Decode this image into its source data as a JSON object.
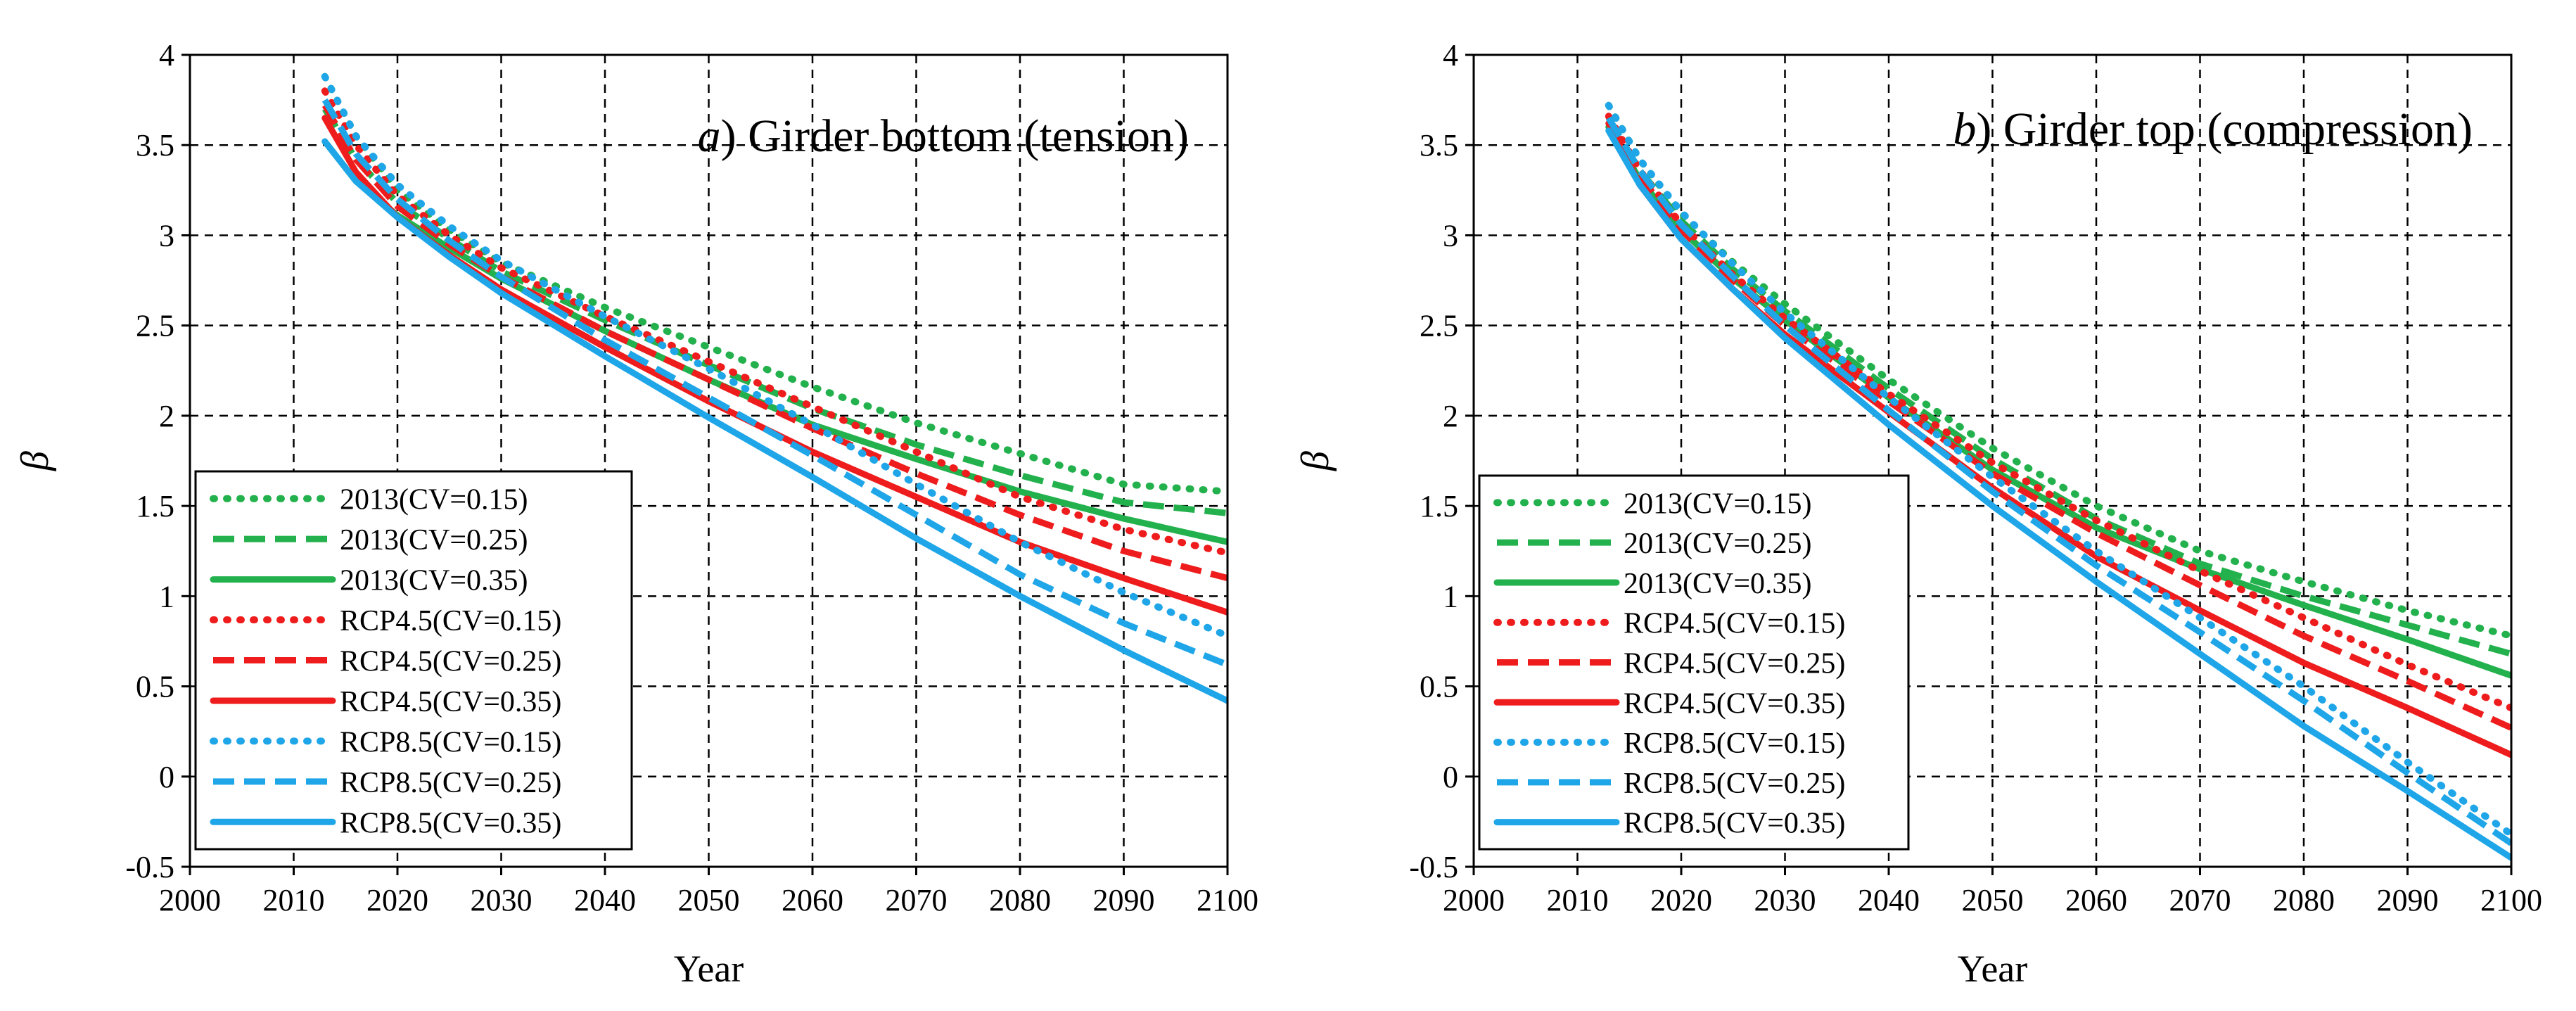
{
  "chart_data": [
    {
      "type": "line",
      "panel_label": "a",
      "title": ") Girder bottom (tension)",
      "xlabel": "Year",
      "ylabel": "β",
      "xlim": [
        2000,
        2100
      ],
      "ylim": [
        -0.5,
        4
      ],
      "xticks": [
        "2000",
        "2010",
        "2020",
        "2030",
        "2040",
        "2050",
        "2060",
        "2070",
        "2080",
        "2090",
        "2100"
      ],
      "yticks": [
        "-0.5",
        "0",
        "0.5",
        "1",
        "1.5",
        "2",
        "2.5",
        "3",
        "3.5",
        "4"
      ],
      "grid": true,
      "legend_position": "bottom-left",
      "series": [
        {
          "name": "2013(CV=0.15)",
          "color": "#22b14c",
          "dash": "dotted",
          "x": [
            2013,
            2016,
            2020,
            2025,
            2030,
            2040,
            2050,
            2060,
            2070,
            2080,
            2090,
            2100
          ],
          "y": [
            3.88,
            3.55,
            3.25,
            3.03,
            2.85,
            2.6,
            2.38,
            2.16,
            1.96,
            1.79,
            1.62,
            1.58
          ]
        },
        {
          "name": "2013(CV=0.25)",
          "color": "#22b14c",
          "dash": "dashed",
          "x": [
            2013,
            2016,
            2020,
            2025,
            2030,
            2040,
            2050,
            2060,
            2070,
            2080,
            2090,
            2100
          ],
          "y": [
            3.7,
            3.42,
            3.18,
            2.98,
            2.8,
            2.53,
            2.28,
            2.04,
            1.84,
            1.67,
            1.52,
            1.46
          ]
        },
        {
          "name": "2013(CV=0.35)",
          "color": "#22b14c",
          "dash": "solid",
          "x": [
            2013,
            2016,
            2020,
            2025,
            2030,
            2040,
            2050,
            2060,
            2070,
            2080,
            2090,
            2100
          ],
          "y": [
            3.52,
            3.3,
            3.11,
            2.93,
            2.76,
            2.47,
            2.2,
            1.95,
            1.76,
            1.58,
            1.43,
            1.3
          ]
        },
        {
          "name": "RCP4.5(CV=0.15)",
          "color": "#ee1c1c",
          "dash": "dotted",
          "x": [
            2013,
            2016,
            2020,
            2025,
            2030,
            2040,
            2050,
            2060,
            2070,
            2080,
            2090,
            2100
          ],
          "y": [
            3.8,
            3.5,
            3.22,
            3.0,
            2.82,
            2.55,
            2.3,
            2.05,
            1.8,
            1.55,
            1.37,
            1.24
          ]
        },
        {
          "name": "RCP4.5(CV=0.25)",
          "color": "#ee1c1c",
          "dash": "dashed",
          "x": [
            2013,
            2016,
            2020,
            2025,
            2030,
            2040,
            2050,
            2060,
            2070,
            2080,
            2090,
            2100
          ],
          "y": [
            3.72,
            3.42,
            3.16,
            2.95,
            2.77,
            2.47,
            2.2,
            1.93,
            1.68,
            1.45,
            1.25,
            1.1
          ]
        },
        {
          "name": "RCP4.5(CV=0.35)",
          "color": "#ee1c1c",
          "dash": "solid",
          "x": [
            2013,
            2016,
            2020,
            2025,
            2030,
            2040,
            2050,
            2060,
            2070,
            2080,
            2090,
            2100
          ],
          "y": [
            3.65,
            3.35,
            3.1,
            2.89,
            2.7,
            2.38,
            2.08,
            1.8,
            1.55,
            1.3,
            1.1,
            0.91
          ]
        },
        {
          "name": "RCP8.5(CV=0.15)",
          "color": "#1fa6e8",
          "dash": "dotted",
          "x": [
            2013,
            2016,
            2020,
            2025,
            2030,
            2040,
            2050,
            2060,
            2070,
            2080,
            2090,
            2100
          ],
          "y": [
            3.88,
            3.55,
            3.28,
            3.05,
            2.86,
            2.55,
            2.26,
            1.95,
            1.62,
            1.3,
            1.02,
            0.78
          ]
        },
        {
          "name": "RCP8.5(CV=0.25)",
          "color": "#1fa6e8",
          "dash": "dashed",
          "x": [
            2013,
            2016,
            2020,
            2025,
            2030,
            2040,
            2050,
            2060,
            2070,
            2080,
            2090,
            2100
          ],
          "y": [
            3.75,
            3.45,
            3.2,
            2.97,
            2.77,
            2.42,
            2.1,
            1.78,
            1.45,
            1.12,
            0.85,
            0.62
          ]
        },
        {
          "name": "RCP8.5(CV=0.35)",
          "color": "#1fa6e8",
          "dash": "solid",
          "x": [
            2013,
            2016,
            2020,
            2025,
            2030,
            2040,
            2050,
            2060,
            2070,
            2080,
            2090,
            2100
          ],
          "y": [
            3.52,
            3.3,
            3.1,
            2.88,
            2.68,
            2.33,
            1.99,
            1.66,
            1.32,
            1.0,
            0.7,
            0.42
          ]
        }
      ]
    },
    {
      "type": "line",
      "panel_label": "b",
      "title": ") Girder top (compression)",
      "xlabel": "Year",
      "ylabel": "β",
      "xlim": [
        2000,
        2100
      ],
      "ylim": [
        -0.5,
        4
      ],
      "xticks": [
        "2000",
        "2010",
        "2020",
        "2030",
        "2040",
        "2050",
        "2060",
        "2070",
        "2080",
        "2090",
        "2100"
      ],
      "yticks": [
        "-0.5",
        "0",
        "0.5",
        "1",
        "1.5",
        "2",
        "2.5",
        "3",
        "3.5",
        "4"
      ],
      "grid": true,
      "legend_position": "bottom-left",
      "series": [
        {
          "name": "2013(CV=0.15)",
          "color": "#22b14c",
          "dash": "dotted",
          "x": [
            2013,
            2016,
            2020,
            2025,
            2030,
            2040,
            2050,
            2060,
            2070,
            2080,
            2090,
            2100
          ],
          "y": [
            3.72,
            3.42,
            3.12,
            2.85,
            2.62,
            2.2,
            1.82,
            1.5,
            1.25,
            1.08,
            0.92,
            0.78
          ]
        },
        {
          "name": "2013(CV=0.25)",
          "color": "#22b14c",
          "dash": "dashed",
          "x": [
            2013,
            2016,
            2020,
            2025,
            2030,
            2040,
            2050,
            2060,
            2070,
            2080,
            2090,
            2100
          ],
          "y": [
            3.65,
            3.36,
            3.08,
            2.81,
            2.58,
            2.15,
            1.76,
            1.43,
            1.18,
            1.0,
            0.84,
            0.68
          ]
        },
        {
          "name": "2013(CV=0.35)",
          "color": "#22b14c",
          "dash": "solid",
          "x": [
            2013,
            2016,
            2020,
            2025,
            2030,
            2040,
            2050,
            2060,
            2070,
            2080,
            2090,
            2100
          ],
          "y": [
            3.6,
            3.31,
            3.03,
            2.76,
            2.53,
            2.1,
            1.7,
            1.38,
            1.15,
            0.95,
            0.76,
            0.56
          ]
        },
        {
          "name": "RCP4.5(CV=0.15)",
          "color": "#ee1c1c",
          "dash": "dotted",
          "x": [
            2013,
            2016,
            2020,
            2025,
            2030,
            2040,
            2050,
            2060,
            2070,
            2080,
            2090,
            2100
          ],
          "y": [
            3.66,
            3.36,
            3.06,
            2.78,
            2.54,
            2.12,
            1.74,
            1.42,
            1.14,
            0.88,
            0.62,
            0.38
          ]
        },
        {
          "name": "RCP4.5(CV=0.25)",
          "color": "#ee1c1c",
          "dash": "dashed",
          "x": [
            2013,
            2016,
            2020,
            2025,
            2030,
            2040,
            2050,
            2060,
            2070,
            2080,
            2090,
            2100
          ],
          "y": [
            3.63,
            3.33,
            3.03,
            2.75,
            2.5,
            2.08,
            1.68,
            1.35,
            1.06,
            0.78,
            0.53,
            0.27
          ]
        },
        {
          "name": "RCP4.5(CV=0.35)",
          "color": "#ee1c1c",
          "dash": "solid",
          "x": [
            2013,
            2016,
            2020,
            2025,
            2030,
            2040,
            2050,
            2060,
            2070,
            2080,
            2090,
            2100
          ],
          "y": [
            3.62,
            3.28,
            2.98,
            2.7,
            2.45,
            2.02,
            1.6,
            1.22,
            0.92,
            0.63,
            0.38,
            0.12
          ]
        },
        {
          "name": "RCP8.5(CV=0.15)",
          "color": "#1fa6e8",
          "dash": "dotted",
          "x": [
            2013,
            2016,
            2020,
            2025,
            2030,
            2040,
            2050,
            2060,
            2070,
            2080,
            2090,
            2100
          ],
          "y": [
            3.72,
            3.42,
            3.13,
            2.84,
            2.57,
            2.1,
            1.66,
            1.25,
            0.88,
            0.5,
            0.08,
            -0.32
          ]
        },
        {
          "name": "RCP8.5(CV=0.25)",
          "color": "#1fa6e8",
          "dash": "dashed",
          "x": [
            2013,
            2016,
            2020,
            2025,
            2030,
            2040,
            2050,
            2060,
            2070,
            2080,
            2090,
            2100
          ],
          "y": [
            3.65,
            3.36,
            3.06,
            2.77,
            2.5,
            2.03,
            1.58,
            1.17,
            0.8,
            0.42,
            0.02,
            -0.37
          ]
        },
        {
          "name": "RCP8.5(CV=0.35)",
          "color": "#1fa6e8",
          "dash": "solid",
          "x": [
            2013,
            2016,
            2020,
            2025,
            2030,
            2040,
            2050,
            2060,
            2070,
            2080,
            2090,
            2100
          ],
          "y": [
            3.58,
            3.28,
            2.98,
            2.7,
            2.43,
            1.95,
            1.5,
            1.08,
            0.68,
            0.28,
            -0.08,
            -0.45
          ]
        }
      ]
    }
  ]
}
